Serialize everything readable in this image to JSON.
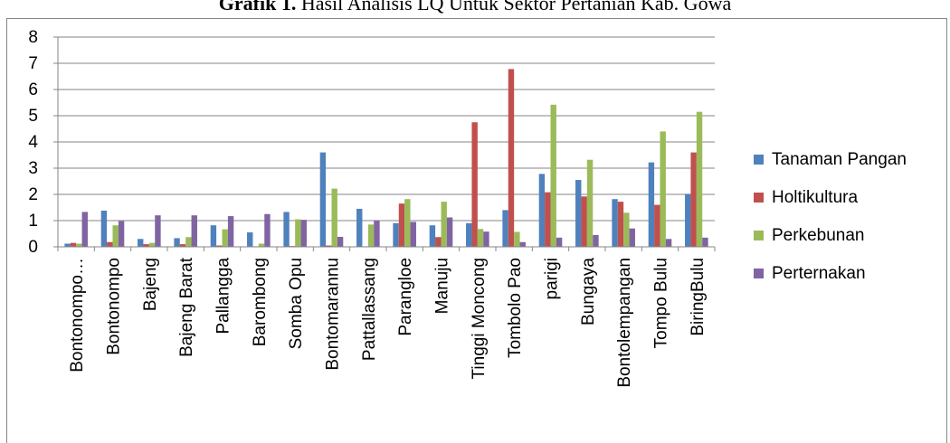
{
  "title": {
    "bold": "Grafik 1.",
    "rest": " Hasil Analisis LQ Untuk Sektor Pertanian Kab. Gowa"
  },
  "chart_data": {
    "type": "bar",
    "categories": [
      "Bontonompo…",
      "Bontonompo",
      "Bajeng",
      "Bajeng Barat",
      "Pallangga",
      "Barombong",
      "Somba Opu",
      "Bontomarannu",
      "Pattallassang",
      "Parangloe",
      "Manuju",
      "Tinggi Moncong",
      "Tombolo Pao",
      "parigi",
      "Bungaya",
      "Bontolempangan",
      "Tompo Bulu",
      "BiringBulu"
    ],
    "series": [
      {
        "name": "Tanaman Pangan",
        "color": "#4f81bd",
        "values": [
          0.12,
          1.38,
          0.3,
          0.33,
          0.82,
          0.55,
          1.33,
          3.6,
          1.45,
          0.9,
          0.82,
          0.9,
          1.4,
          2.78,
          2.55,
          1.82,
          3.22,
          2.02
        ]
      },
      {
        "name": "Holtikultura",
        "color": "#c0504d",
        "values": [
          0.15,
          0.18,
          0.1,
          0.1,
          0.05,
          0.02,
          0.03,
          0.05,
          0.02,
          1.65,
          0.37,
          4.75,
          6.78,
          2.08,
          1.92,
          1.72,
          1.6,
          3.6
        ]
      },
      {
        "name": "Perkebunan",
        "color": "#9bbb59",
        "values": [
          0.12,
          0.82,
          0.15,
          0.37,
          0.67,
          0.12,
          1.05,
          2.22,
          0.85,
          1.82,
          1.72,
          0.68,
          0.57,
          5.42,
          3.32,
          1.3,
          4.4,
          5.15
        ]
      },
      {
        "name": "Perternakan",
        "color": "#8064a2",
        "values": [
          1.33,
          0.98,
          1.2,
          1.2,
          1.17,
          1.25,
          1.03,
          0.38,
          1.0,
          0.95,
          1.12,
          0.58,
          0.18,
          0.35,
          0.45,
          0.7,
          0.3,
          0.35
        ]
      }
    ],
    "y_ticks": [
      "0",
      "1",
      "2",
      "3",
      "4",
      "5",
      "6",
      "7",
      "8"
    ],
    "ylim": [
      0,
      8
    ],
    "grid": true,
    "legend_position": "right"
  }
}
